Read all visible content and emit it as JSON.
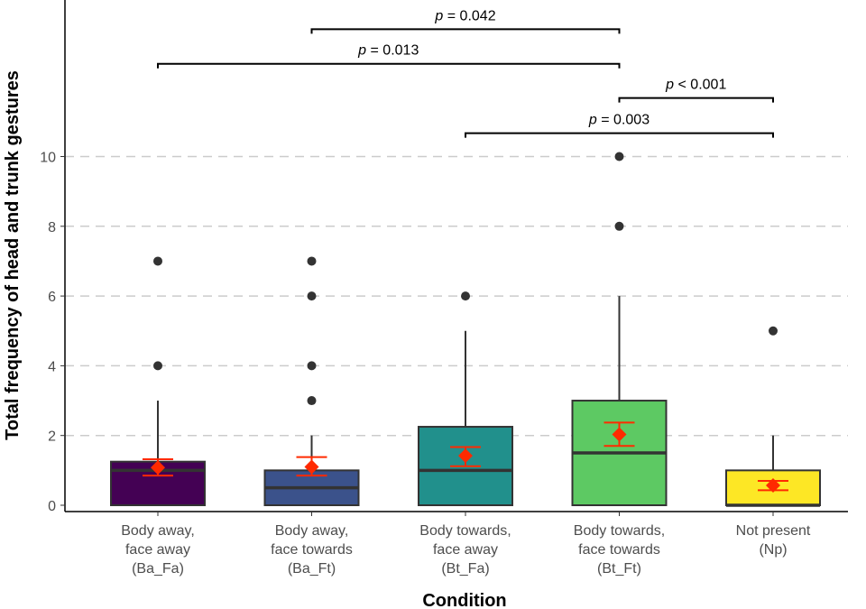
{
  "chart_data": {
    "type": "box",
    "title": "",
    "xlabel": "Condition",
    "ylabel": "Total frequency of head and trunk gestures",
    "ylim": [
      0,
      14.5
    ],
    "yticks": [
      0,
      2,
      4,
      6,
      8,
      10
    ],
    "grid": "horizontal dashed at major ticks",
    "categories": [
      {
        "lines": [
          "Body away,",
          "face away",
          "(Ba_Fa)"
        ],
        "color": "#440154",
        "q1": 0,
        "median": 1,
        "q3": 1.25,
        "whisker_low": 0,
        "whisker_high": 3,
        "outliers": [
          4,
          7
        ],
        "mean": 1.08,
        "mean_ci": [
          0.85,
          1.32
        ]
      },
      {
        "lines": [
          "Body away,",
          "face towards",
          "(Ba_Ft)"
        ],
        "color": "#3B528B",
        "q1": 0,
        "median": 0.5,
        "q3": 1,
        "whisker_low": 0,
        "whisker_high": 2,
        "outliers": [
          3,
          4,
          6,
          7
        ],
        "mean": 1.1,
        "mean_ci": [
          0.85,
          1.38
        ]
      },
      {
        "lines": [
          "Body towards,",
          "face away",
          "(Bt_Fa)"
        ],
        "color": "#21908C",
        "q1": 0,
        "median": 1,
        "q3": 2.25,
        "whisker_low": 0,
        "whisker_high": 5,
        "outliers": [
          6
        ],
        "mean": 1.42,
        "mean_ci": [
          1.12,
          1.67
        ]
      },
      {
        "lines": [
          "Body towards,",
          "face towards",
          "(Bt_Ft)"
        ],
        "color": "#5DC963",
        "q1": 0,
        "median": 1.5,
        "q3": 3,
        "whisker_low": 0,
        "whisker_high": 6,
        "outliers": [
          8,
          10
        ],
        "mean": 2.03,
        "mean_ci": [
          1.7,
          2.37
        ]
      },
      {
        "lines": [
          "Not present",
          "(Np)"
        ],
        "color": "#FDE725",
        "q1": 0,
        "median": 0,
        "q3": 1,
        "whisker_low": 0,
        "whisker_high": 2,
        "outliers": [
          5
        ],
        "mean": 0.57,
        "mean_ci": [
          0.43,
          0.7
        ]
      }
    ],
    "mean_marker_color": "#FF2A00",
    "comparisons": [
      {
        "from": 1,
        "to": 3,
        "label_prefix": "p",
        "label_rest": " = 0.042",
        "y": 13.65
      },
      {
        "from": 0,
        "to": 3,
        "label_prefix": "p",
        "label_rest": " = 0.013",
        "y": 12.66
      },
      {
        "from": 3,
        "to": 4,
        "label_prefix": "p",
        "label_rest": " < 0.001",
        "y": 11.68
      },
      {
        "from": 2,
        "to": 4,
        "label_prefix": "p",
        "label_rest": " = 0.003",
        "y": 10.67
      }
    ]
  }
}
